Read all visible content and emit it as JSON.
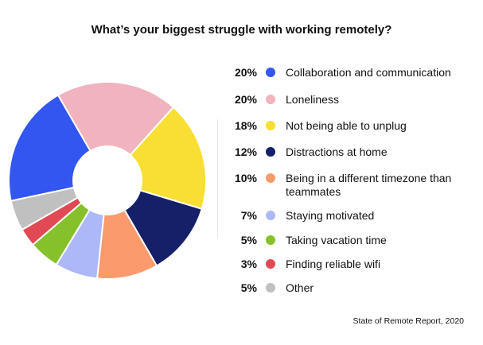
{
  "chart_data": {
    "type": "pie",
    "title": "What’s your biggest struggle with working remotely?",
    "source": "State of Remote Report, 2020",
    "slices": [
      {
        "label": "Collaboration and communication",
        "pct_label": "20%",
        "value": 20,
        "color": "#3355f0"
      },
      {
        "label": "Loneliness",
        "pct_label": "20%",
        "value": 20,
        "color": "#f1b3bd"
      },
      {
        "label": "Not being able to unplug",
        "pct_label": "18%",
        "value": 18,
        "color": "#f9df33"
      },
      {
        "label": "Distractions at home",
        "pct_label": "12%",
        "value": 12,
        "color": "#162068"
      },
      {
        "label": "Being in a different timezone than teammates",
        "pct_label": "10%",
        "value": 10,
        "color": "#fb9a6c"
      },
      {
        "label": "Staying motivated",
        "pct_label": "7%",
        "value": 7,
        "color": "#adb8f9"
      },
      {
        "label": "Taking vacation time",
        "pct_label": "5%",
        "value": 5,
        "color": "#86c12b"
      },
      {
        "label": "Finding reliable wifi",
        "pct_label": "3%",
        "value": 3,
        "color": "#e14a55"
      },
      {
        "label": "Other",
        "pct_label": "5%",
        "value": 5,
        "color": "#c0c0c0"
      }
    ]
  }
}
